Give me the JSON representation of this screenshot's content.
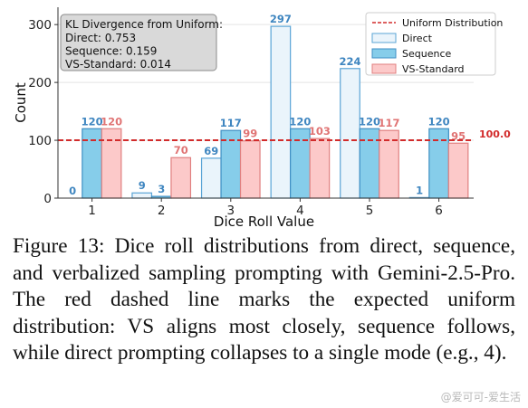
{
  "chart_data": {
    "type": "bar",
    "title": "",
    "xlabel": "Dice Roll Value",
    "ylabel": "Count",
    "categories": [
      "1",
      "2",
      "3",
      "4",
      "5",
      "6"
    ],
    "ylim": [
      0,
      330
    ],
    "yticks": [
      0,
      100,
      200,
      300
    ],
    "grid": "horizontal",
    "series": [
      {
        "name": "Direct",
        "values": [
          0,
          9,
          69,
          297,
          224,
          1
        ],
        "fill": "#eaf4fb",
        "edge": "#5aa4d6",
        "label_color": "#3f86c0"
      },
      {
        "name": "Sequence",
        "values": [
          120,
          3,
          117,
          120,
          120,
          120
        ],
        "fill": "#86cdea",
        "edge": "#3f8fc4",
        "label_color": "#3f86c0"
      },
      {
        "name": "VS-Standard",
        "values": [
          120,
          70,
          99,
          103,
          117,
          95
        ],
        "fill": "#fcc9c9",
        "edge": "#e08080",
        "label_color": "#e07474"
      }
    ],
    "reference_line": {
      "name": "Uniform Distribution",
      "value": 100.0,
      "label": "100.0",
      "color": "#d22b2b",
      "style": "dashed"
    },
    "legend_position": "top-right",
    "annotation_box": {
      "title": "KL Divergence from Uniform:",
      "lines": [
        "Direct: 0.753",
        "Sequence: 0.159",
        "VS-Standard: 0.014"
      ]
    }
  },
  "caption": "Figure 13: Dice roll distributions from direct, sequence, and verbalized sampling prompting with Gemini-2.5-Pro. The red dashed line marks the expected uniform distribution: VS aligns most closely, sequence follows, while direct prompting collapses to a single mode (e.g., 4).",
  "watermark": "@爱可可-爱生活"
}
